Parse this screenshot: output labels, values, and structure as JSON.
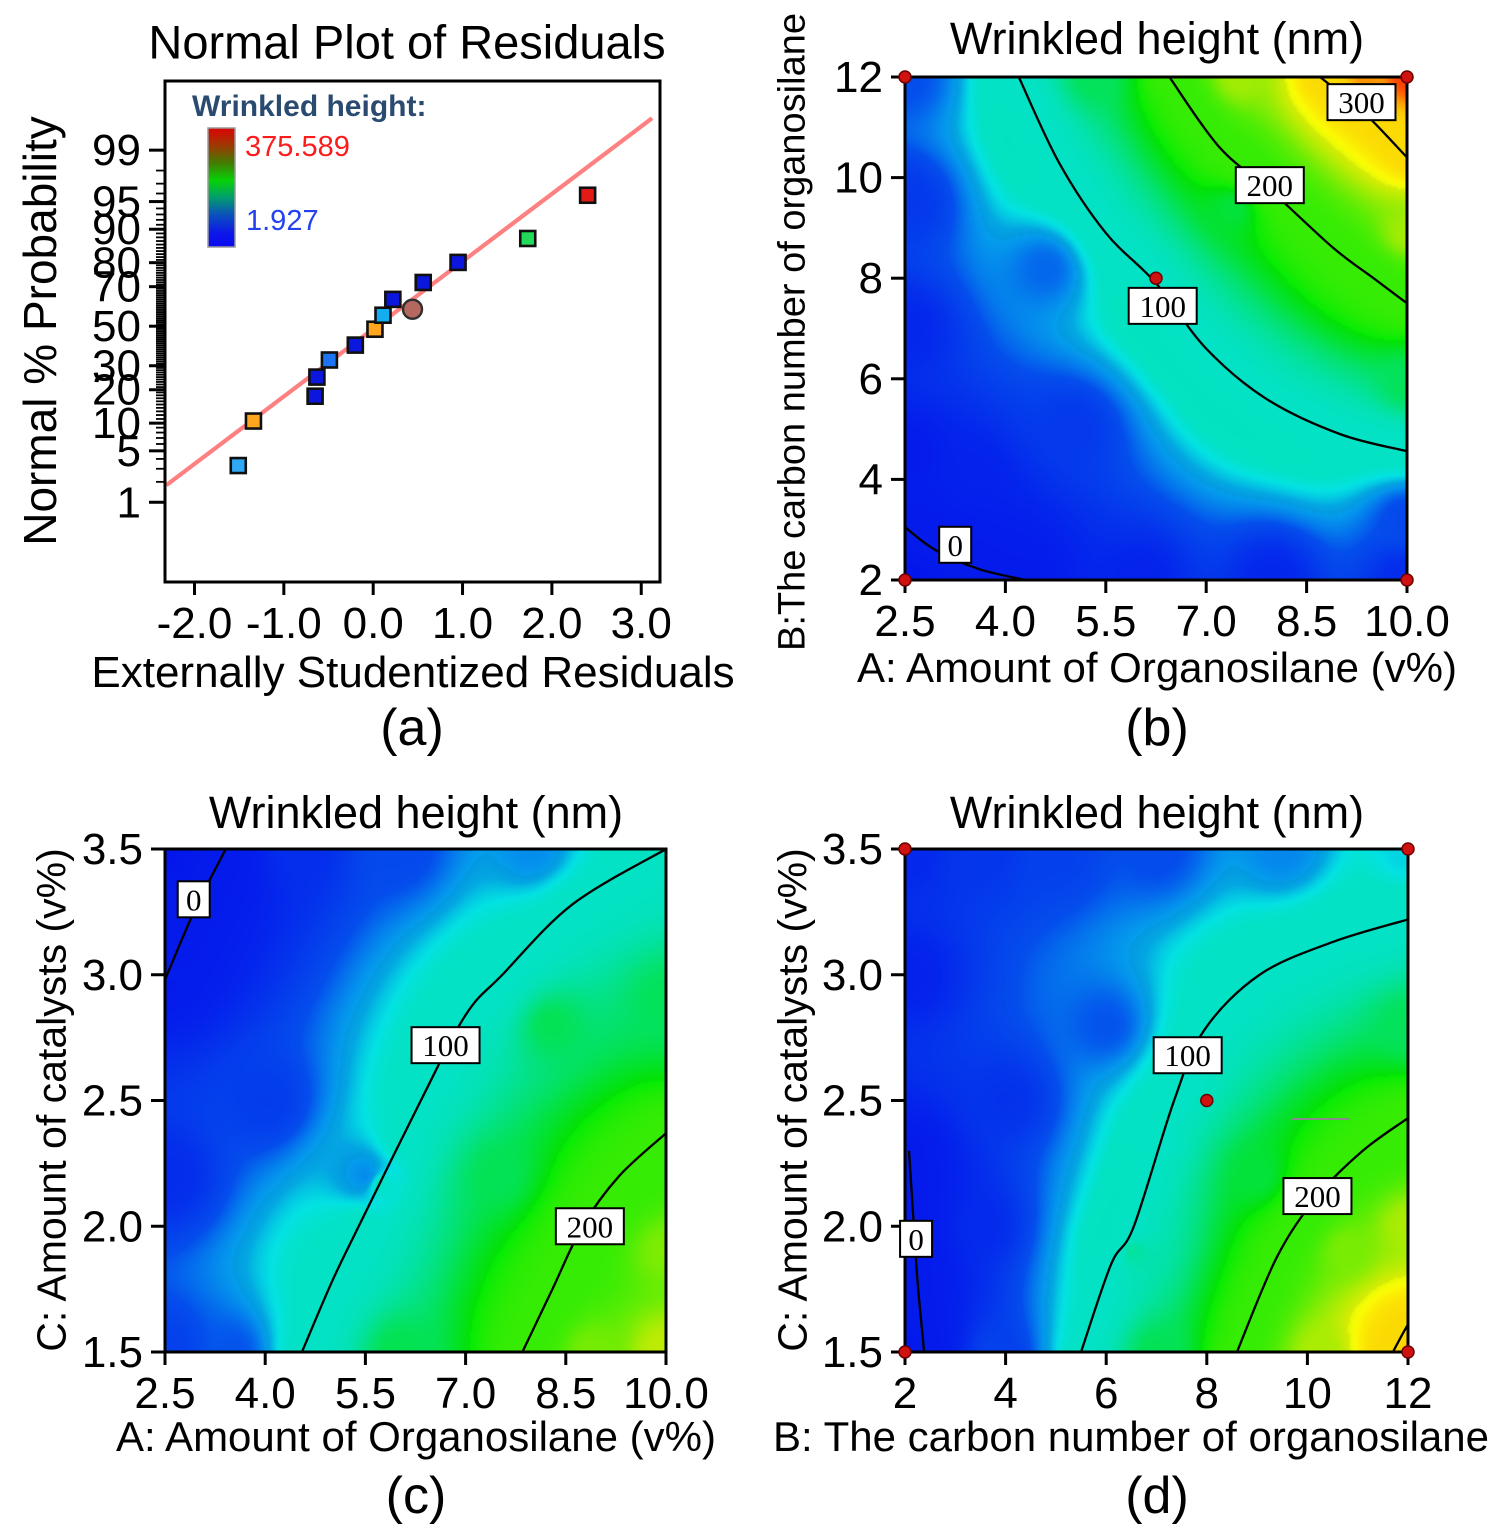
{
  "colors": {
    "background": "#ffffff",
    "trend_line": "#ff8080",
    "axis": "#000000",
    "marker_stroke": "#101010",
    "design_point_fill": "#cf1110",
    "design_point_stroke": "#6b0000",
    "legend_title": "#2a4a70",
    "legend_max": "#fb1c1c",
    "legend_min": "#2441f0",
    "contour_line": "#000000",
    "contour_label_bg": "#ffffff",
    "tooltip_bg": "#f4f4f4",
    "tooltip_border": "#8a8a8a",
    "tooltip_text": "#333333"
  },
  "panels": {
    "a": {
      "caption": "(a)",
      "title": "Normal Plot of Residuals",
      "xlabel": "Externally Studentized Residuals",
      "ylabel": "Normal % Probability",
      "legend": {
        "title": "Wrinkled height:",
        "max": "375.589",
        "min": "1.927"
      }
    },
    "b": {
      "caption": "(b)",
      "title": "Wrinkled height (nm)",
      "xlabel": "A: Amount of Organosilane  (v%)",
      "ylabel": "B:The carbon number of organosilane"
    },
    "c": {
      "caption": "(c)",
      "title": "Wrinkled height (nm)",
      "xlabel": "A: Amount of Organosilane  (v%)",
      "ylabel": "C: Amount of catalysts (v%)"
    },
    "d": {
      "caption": "(d)",
      "title": "Wrinkled height (nm)",
      "xlabel": "B: The carbon number of organosilane",
      "ylabel": "C: Amount of catalysts (v%)",
      "tooltip": "点击固定"
    }
  },
  "chart_data": [
    {
      "id": "a",
      "type": "scatter",
      "yscale": "normal-probability",
      "title": "Normal Plot of Residuals",
      "xlabel": "Externally Studentized Residuals",
      "ylabel": "Normal % Probability",
      "xlim": [
        -2.33,
        3.21
      ],
      "zlim": [
        -3.38,
        3.24
      ],
      "xticks": {
        "labels": [
          "-2.0",
          "-1.0",
          "0.0",
          "1.0",
          "2.0",
          "3.0"
        ],
        "values": [
          -2,
          -1,
          0,
          1,
          2,
          3
        ]
      },
      "yticks": {
        "labels": [
          "1",
          "5",
          "10",
          "20",
          "30",
          "50",
          "70",
          "80",
          "90",
          "95",
          "99"
        ],
        "values": [
          1,
          5,
          10,
          20,
          30,
          50,
          70,
          80,
          90,
          95,
          99
        ]
      },
      "minor_ticks_percent": {
        "from": 1,
        "to": 99,
        "step": 1
      },
      "trend_line": {
        "x1": -2.315,
        "z1": -2.101,
        "x2": 3.121,
        "z2": 2.748
      },
      "legend": {
        "title": "Wrinkled height:",
        "max_value": 375.589,
        "min_value": 1.927,
        "bar_stops": [
          [
            "0%",
            "#de0303"
          ],
          [
            "16%",
            "#963e00"
          ],
          [
            "30%",
            "#3f8000"
          ],
          [
            "44%",
            "#06d206"
          ],
          [
            "58%",
            "#00a06a"
          ],
          [
            "72%",
            "#0b55b8"
          ],
          [
            "88%",
            "#0c18e8"
          ],
          [
            "100%",
            "#0a0aef"
          ]
        ]
      },
      "points": [
        {
          "x": -1.51,
          "p": 3.3,
          "color": "#2fa8f5",
          "shape": "square"
        },
        {
          "x": -1.34,
          "p": 10.5,
          "color": "#ffa51e",
          "shape": "square"
        },
        {
          "x": -0.65,
          "p": 17.7,
          "color": "#0b17dd",
          "shape": "square"
        },
        {
          "x": -0.63,
          "p": 25.0,
          "color": "#0b17dd",
          "shape": "square"
        },
        {
          "x": -0.49,
          "p": 32.7,
          "color": "#1d74f2",
          "shape": "square"
        },
        {
          "x": -0.2,
          "p": 40.1,
          "color": "#0b17dd",
          "shape": "square"
        },
        {
          "x": 0.02,
          "p": 48.4,
          "color": "#ffa51e",
          "shape": "square"
        },
        {
          "x": 0.11,
          "p": 55.8,
          "color": "#12aef0",
          "shape": "square"
        },
        {
          "x": 0.44,
          "p": 58.9,
          "color": "#b4685f",
          "shape": "circle"
        },
        {
          "x": 0.22,
          "p": 63.9,
          "color": "#0b17dd",
          "shape": "square"
        },
        {
          "x": 0.56,
          "p": 71.9,
          "color": "#0b17dd",
          "shape": "square"
        },
        {
          "x": 0.95,
          "p": 80.1,
          "color": "#0b17dd",
          "shape": "square"
        },
        {
          "x": 1.73,
          "p": 87.7,
          "color": "#21da57",
          "shape": "square"
        },
        {
          "x": 2.4,
          "p": 95.8,
          "color": "#e31b17",
          "shape": "square"
        }
      ]
    },
    {
      "id": "b",
      "type": "contour-filled",
      "title": "Wrinkled height (nm)",
      "xlabel": "A: Amount of Organosilane  (v%)",
      "ylabel": "B:The carbon number of organosilane",
      "xrange": [
        2.5,
        10
      ],
      "yrange": [
        2,
        12
      ],
      "xticks": {
        "labels": [
          "2.5",
          "4.0",
          "5.5",
          "7.0",
          "8.5",
          "10.0"
        ],
        "values": [
          2.5,
          4,
          5.5,
          7,
          8.5,
          10
        ]
      },
      "yticks": {
        "labels": [
          "2",
          "4",
          "6",
          "8",
          "10",
          "12"
        ],
        "values": [
          2,
          4,
          6,
          8,
          10,
          12
        ]
      },
      "contours": [
        {
          "level": 0,
          "pts": [
            [
              2.5,
              3.05
            ],
            [
              2.95,
              2.6
            ],
            [
              3.6,
              2.22
            ],
            [
              4.3,
              2.0
            ]
          ],
          "label": [
            3.25,
            2.7
          ]
        },
        {
          "level": 100,
          "pts": [
            [
              4.2,
              12
            ],
            [
              4.8,
              10.3
            ],
            [
              5.5,
              8.9
            ],
            [
              6.25,
              7.9
            ],
            [
              7.0,
              6.6
            ],
            [
              7.9,
              5.6
            ],
            [
              9.0,
              4.9
            ],
            [
              10,
              4.56
            ]
          ],
          "label": [
            6.35,
            7.45
          ]
        },
        {
          "level": 200,
          "pts": [
            [
              6.45,
              12
            ],
            [
              7.2,
              10.6
            ],
            [
              8.0,
              9.7
            ],
            [
              8.9,
              8.6
            ],
            [
              9.5,
              8.0
            ],
            [
              10,
              7.5
            ]
          ],
          "label": [
            7.95,
            9.85
          ]
        },
        {
          "level": 300,
          "pts": [
            [
              8.7,
              12
            ],
            [
              9.35,
              11.3
            ],
            [
              10,
              10.4
            ]
          ],
          "label": [
            9.32,
            11.5
          ]
        }
      ],
      "design_points": [
        [
          2.5,
          2
        ],
        [
          10,
          2
        ],
        [
          2.5,
          12
        ],
        [
          10,
          12
        ],
        [
          6.25,
          8
        ]
      ],
      "anchors": [
        [
          2.5,
          2,
          -18
        ],
        [
          2.5,
          4.5,
          0
        ],
        [
          2.5,
          7,
          14
        ],
        [
          2.5,
          9.5,
          35
        ],
        [
          2.5,
          12,
          60
        ],
        [
          4,
          2,
          2
        ],
        [
          6,
          2,
          10
        ],
        [
          8,
          2,
          14
        ],
        [
          10,
          2,
          20
        ],
        [
          10,
          3.2,
          55
        ],
        [
          5,
          5,
          36
        ],
        [
          3.5,
          4,
          8
        ],
        [
          7.4,
          9.4,
          160
        ],
        [
          5.3,
          12,
          148
        ],
        [
          7.5,
          12,
          248
        ],
        [
          9.4,
          12,
          335
        ],
        [
          10,
          12,
          372
        ],
        [
          10,
          5.9,
          148
        ],
        [
          10,
          8.9,
          248
        ],
        [
          4.6,
          8.2,
          68
        ]
      ]
    },
    {
      "id": "c",
      "type": "contour-filled",
      "title": "Wrinkled height (nm)",
      "xlabel": "A: Amount of Organosilane  (v%)",
      "ylabel": "C: Amount of catalysts (v%)",
      "xrange": [
        2.5,
        10
      ],
      "yrange": [
        1.5,
        3.5
      ],
      "xticks": {
        "labels": [
          "2.5",
          "4.0",
          "5.5",
          "7.0",
          "8.5",
          "10.0"
        ],
        "values": [
          2.5,
          4,
          5.5,
          7,
          8.5,
          10
        ]
      },
      "yticks": {
        "labels": [
          "1.5",
          "2.0",
          "2.5",
          "3.0",
          "3.5"
        ],
        "values": [
          1.5,
          2,
          2.5,
          3,
          3.5
        ]
      },
      "contours": [
        {
          "level": 0,
          "pts": [
            [
              2.5,
              2.98
            ],
            [
              2.95,
              3.26
            ],
            [
              3.41,
              3.5
            ]
          ],
          "label": [
            2.93,
            3.3
          ]
        },
        {
          "level": 100,
          "pts": [
            [
              4.55,
              1.5
            ],
            [
              5.0,
              1.78
            ],
            [
              5.4,
              2.0
            ],
            [
              6.33,
              2.5
            ],
            [
              7.0,
              2.84
            ],
            [
              7.55,
              3.0
            ],
            [
              8.6,
              3.28
            ],
            [
              10,
              3.5
            ]
          ],
          "label": [
            6.7,
            2.72
          ]
        },
        {
          "level": 200,
          "pts": [
            [
              7.85,
              1.5
            ],
            [
              8.3,
              1.75
            ],
            [
              8.75,
              2.0
            ],
            [
              9.3,
              2.2
            ],
            [
              10,
              2.37
            ]
          ],
          "label": [
            8.86,
            2.0
          ]
        }
      ],
      "design_points": [],
      "anchors": [
        [
          2.5,
          3.5,
          -12
        ],
        [
          2.5,
          3.0,
          2
        ],
        [
          2.5,
          2.2,
          20
        ],
        [
          2.5,
          1.5,
          45
        ],
        [
          3.5,
          1.5,
          62
        ],
        [
          6,
          1.5,
          152
        ],
        [
          8.9,
          1.5,
          228
        ],
        [
          10,
          1.5,
          262
        ],
        [
          10,
          1.9,
          232
        ],
        [
          10,
          2.9,
          148
        ],
        [
          10,
          3.5,
          103
        ],
        [
          8,
          3.5,
          80
        ],
        [
          6,
          3.5,
          55
        ],
        [
          4.5,
          3.5,
          22
        ],
        [
          4,
          2.5,
          40
        ],
        [
          5.5,
          2.2,
          80
        ],
        [
          7.5,
          2.2,
          150
        ],
        [
          8.3,
          2.8,
          150
        ]
      ]
    },
    {
      "id": "d",
      "type": "contour-filled",
      "title": "Wrinkled height (nm)",
      "xlabel": "B: The carbon number of organosilane",
      "ylabel": "C: Amount of catalysts (v%)",
      "xrange": [
        2,
        12
      ],
      "yrange": [
        1.5,
        3.5
      ],
      "xticks": {
        "labels": [
          "2",
          "4",
          "6",
          "8",
          "10",
          "12"
        ],
        "values": [
          2,
          4,
          6,
          8,
          10,
          12
        ]
      },
      "yticks": {
        "labels": [
          "1.5",
          "2.0",
          "2.5",
          "3.0",
          "3.5"
        ],
        "values": [
          1.5,
          2,
          2.5,
          3,
          3.5
        ]
      },
      "contours": [
        {
          "level": 0,
          "pts": [
            [
              2.08,
              2.3
            ],
            [
              2.16,
              2.05
            ],
            [
              2.25,
              1.78
            ],
            [
              2.38,
              1.5
            ]
          ],
          "label": [
            2.22,
            1.95
          ]
        },
        {
          "level": 100,
          "pts": [
            [
              5.5,
              1.5
            ],
            [
              6.1,
              1.85
            ],
            [
              6.55,
              2.0
            ],
            [
              7.35,
              2.5
            ],
            [
              7.95,
              2.78
            ],
            [
              9.05,
              3.0
            ],
            [
              10.5,
              3.13
            ],
            [
              12,
              3.22
            ]
          ],
          "label": [
            7.62,
            2.68
          ]
        },
        {
          "level": 200,
          "pts": [
            [
              8.6,
              1.5
            ],
            [
              9.4,
              1.88
            ],
            [
              10.2,
              2.12
            ],
            [
              11.1,
              2.3
            ],
            [
              12,
              2.43
            ]
          ],
          "label": [
            10.2,
            2.12
          ]
        },
        {
          "level": 300,
          "pts": [
            [
              11.7,
              1.5
            ],
            [
              11.86,
              1.56
            ],
            [
              12,
              1.61
            ]
          ],
          "label": null
        }
      ],
      "design_points": [
        [
          2,
          1.5
        ],
        [
          12,
          1.5
        ],
        [
          2,
          3.5
        ],
        [
          12,
          3.5
        ],
        [
          8,
          2.5
        ]
      ],
      "tooltip": {
        "text": "点击固定",
        "pos": [
          9.69,
          2.43
        ]
      },
      "anchors": [
        [
          2,
          1.5,
          -8
        ],
        [
          2,
          3.0,
          8
        ],
        [
          2,
          3.5,
          15
        ],
        [
          3.5,
          3.5,
          32
        ],
        [
          5,
          3.5,
          45
        ],
        [
          7,
          3.5,
          58
        ],
        [
          9.5,
          3.5,
          78
        ],
        [
          12,
          3.5,
          95
        ],
        [
          12,
          2.8,
          148
        ],
        [
          12,
          2.0,
          252
        ],
        [
          12,
          1.5,
          315
        ],
        [
          10.3,
          1.5,
          252
        ],
        [
          7,
          1.5,
          150
        ],
        [
          3.8,
          1.5,
          45
        ],
        [
          2.4,
          1.5,
          0
        ],
        [
          4,
          2.5,
          28
        ],
        [
          6,
          2.8,
          62
        ],
        [
          9,
          2.2,
          160
        ],
        [
          10.8,
          1.9,
          230
        ],
        [
          6.5,
          1.9,
          118
        ],
        [
          3.5,
          2.0,
          18
        ]
      ]
    }
  ]
}
